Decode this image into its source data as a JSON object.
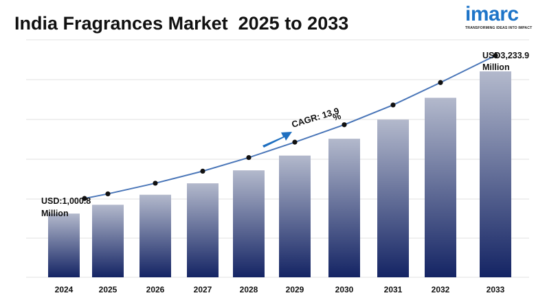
{
  "title": "India Fragrances Market  2025 to 2033",
  "logo": {
    "word": "imarc",
    "tagline": "TRANSFORMING IDEAS INTO IMPACT",
    "color": "#1e74c8"
  },
  "chart_data": {
    "type": "bar",
    "title": "India Fragrances Market  2025 to 2033",
    "categories": [
      "2024",
      "2025",
      "2026",
      "2027",
      "2028",
      "2029",
      "2030",
      "2031",
      "2032",
      "2033"
    ],
    "values": [
      1000.8,
      1139.2,
      1296.6,
      1475.8,
      1679.8,
      1911.9,
      2176.1,
      2476.9,
      2819.2,
      3233.9
    ],
    "ylim": [
      0,
      3500
    ],
    "grid": true,
    "legend": "none",
    "series": [
      {
        "values": [
          1000.8,
          1139.2,
          1296.6,
          1475.8,
          1679.8,
          1911.9,
          2176.1,
          2476.9,
          2819.2,
          3233.9
        ]
      }
    ],
    "annotations": {
      "start_value": "USD:1,000.8",
      "start_unit": "Million",
      "end_value": "USD3,233.9",
      "end_unit": "Million",
      "cagr_text": "CAGR: 13.9",
      "cagr_symbol": "%"
    },
    "colors": {
      "bar_top": "#b3b9cc",
      "bar_bottom": "#142464",
      "line": "#4a76b8",
      "arrow": "#1e6fc0",
      "grid": "#e2e2e2"
    }
  }
}
